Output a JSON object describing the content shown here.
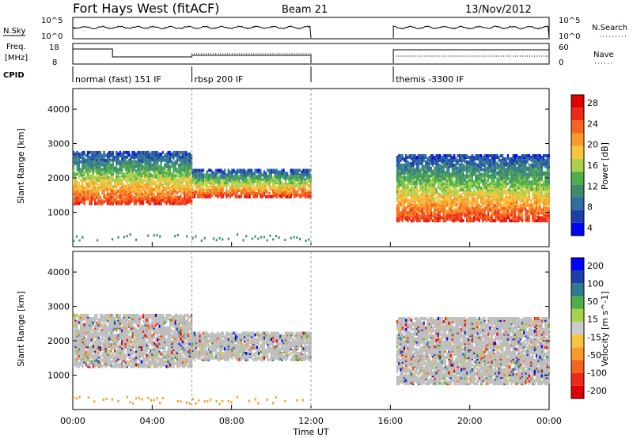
{
  "header": {
    "title": "Fort Hays West (fitACF)",
    "beam": "Beam 21",
    "date": "13/Nov/2012"
  },
  "side_labels": {
    "nsky": "N.Sky",
    "freq_line1": "Freq.",
    "freq_line2": "[MHz]",
    "cpid": "CPID",
    "nsearch": "N.Search",
    "nave": "Nave"
  },
  "noise_panel": {
    "left_ticks": [
      "10^5",
      "10^0"
    ],
    "right_ticks": [
      "10^5",
      "10^0"
    ]
  },
  "freq_panel": {
    "left_ticks": [
      "18",
      "8"
    ],
    "right_ticks": [
      "60",
      "0"
    ]
  },
  "cpid_segments": [
    {
      "label": "normal (fast) 151 IF",
      "start_h": 0,
      "end_h": 6
    },
    {
      "label": "rbsp 200 IF",
      "start_h": 6,
      "end_h": 12
    },
    {
      "label": "themis -3300 IF",
      "start_h": 16.15,
      "end_h": 24
    }
  ],
  "colors": {
    "power_scale": [
      "#0000ff",
      "#1a3fa8",
      "#2e6ea0",
      "#3f8c6a",
      "#4daf4a",
      "#a7d34a",
      "#f7c43c",
      "#f99a2a",
      "#f6641f",
      "#ee2a18",
      "#e00000"
    ],
    "velocity_scale": [
      "#0000ff",
      "#1a3fa8",
      "#2e7a8a",
      "#4daf4a",
      "#a7d34a",
      "#cccccc",
      "#f7c43c",
      "#f99a2a",
      "#f6641f",
      "#ee2a18",
      "#e00000"
    ],
    "ground_scatter": "#bdbdbd"
  },
  "chart_data": [
    {
      "type": "heatmap",
      "name": "power-panel",
      "ylabel": "Slant Range [km]",
      "y_ticks": [
        1000,
        2000,
        3000,
        4000
      ],
      "ylim": [
        0,
        4600
      ],
      "xlim": [
        0,
        24
      ],
      "colorbar_label": "Power [dB]",
      "colorbar_ticks": [
        4,
        8,
        12,
        16,
        20,
        24,
        28
      ],
      "colorbar_range": [
        0,
        30
      ]
    },
    {
      "type": "heatmap",
      "name": "velocity-panel",
      "ylabel": "Slant Range [km]",
      "y_ticks": [
        1000,
        2000,
        3000,
        4000
      ],
      "ylim": [
        0,
        4600
      ],
      "xlim": [
        0,
        24
      ],
      "colorbar_label": "Velocity [m s^-1]",
      "colorbar_ticks": [
        "200",
        "100",
        "50",
        "15",
        "-15",
        "-50",
        "-100",
        "-200"
      ]
    }
  ],
  "time_axis": {
    "labels": [
      "00:00",
      "04:00",
      "08:00",
      "12:00",
      "16:00",
      "20:00",
      "00:00"
    ],
    "title": "Time UT"
  }
}
